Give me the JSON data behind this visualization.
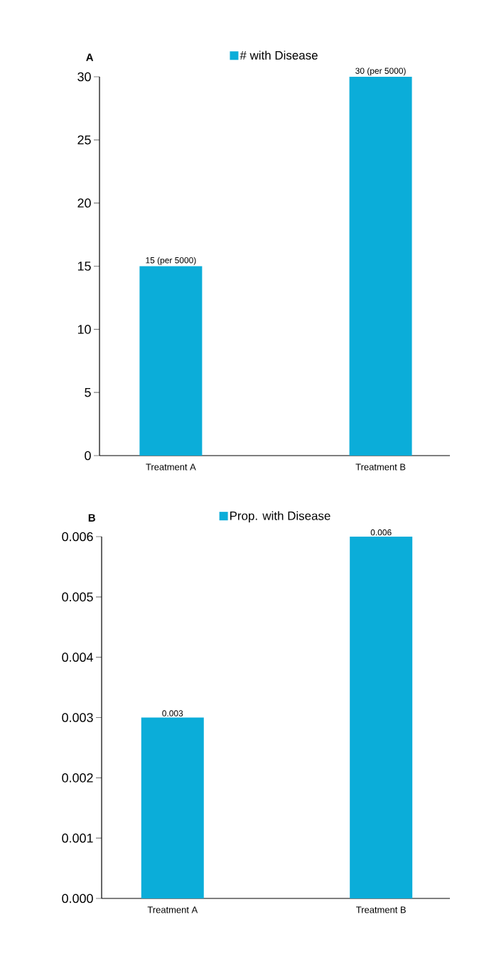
{
  "chart_data": [
    {
      "type": "bar",
      "title": "A",
      "categories": [
        "Treatment A",
        "Treatment B"
      ],
      "series": [
        {
          "name": "# with Disease",
          "color": "#0badd9",
          "values": [
            15,
            30
          ],
          "value_labels": [
            "15 (per 5000)",
            "30 (per 5000)"
          ]
        }
      ],
      "ylim": [
        0,
        30
      ],
      "yticks": [
        0,
        5,
        10,
        15,
        20,
        25,
        30
      ],
      "legend": "top"
    },
    {
      "type": "bar",
      "title": "B",
      "categories": [
        "Treatment A",
        "Treatment B"
      ],
      "series": [
        {
          "name": "Prop. with Disease",
          "color": "#0badd9",
          "values": [
            0.003,
            0.006
          ]
        }
      ],
      "ylim": [
        0,
        0.006
      ],
      "yticks": [
        {
          "value": 0,
          "label": "0.000"
        },
        {
          "value": 0.001,
          "label": "0.001"
        },
        {
          "value": 0.002,
          "label": "0.002"
        },
        {
          "value": 0.003,
          "label": "0.003"
        },
        {
          "value": 0.004,
          "label": "0.004"
        },
        {
          "value": 0.005,
          "label": "0.005"
        },
        {
          "value": 0.006,
          "label": "0.006"
        }
      ],
      "data_labels": true,
      "legend": "top"
    }
  ]
}
